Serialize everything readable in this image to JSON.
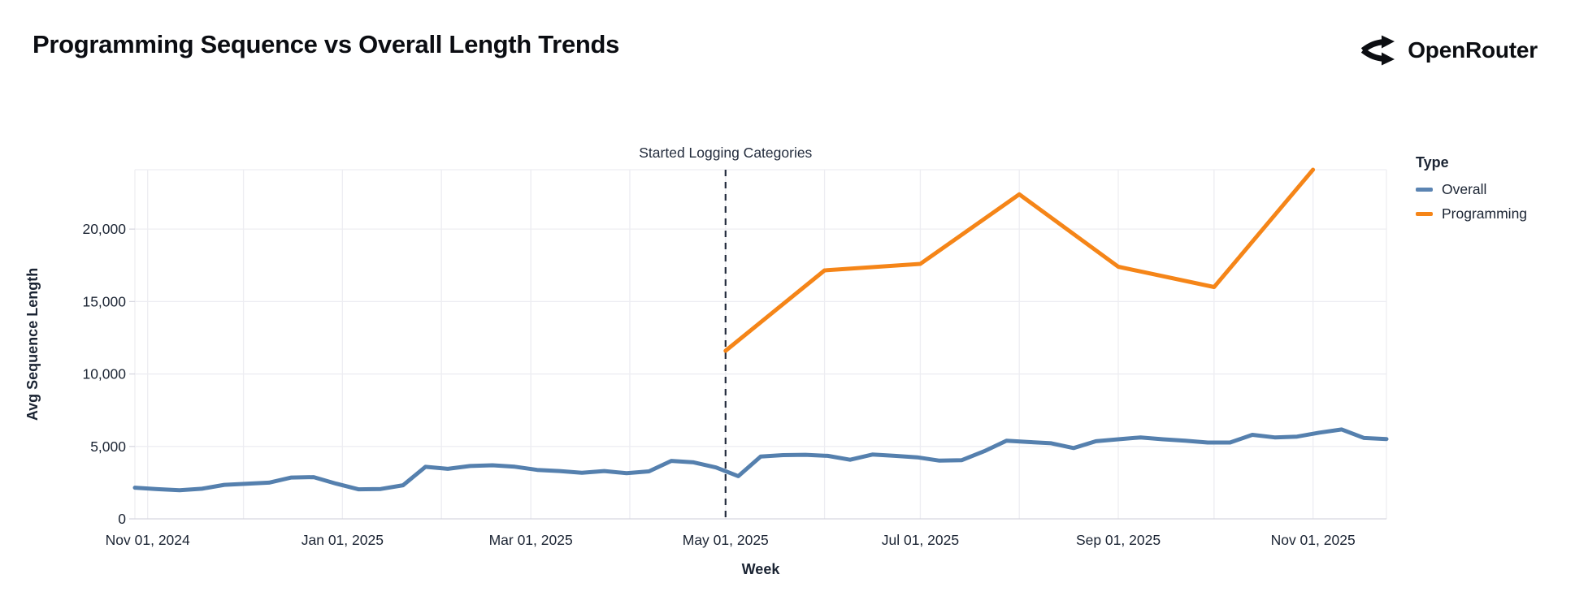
{
  "header": {
    "title": "Programming Sequence vs Overall Length Trends",
    "brand": "OpenRouter"
  },
  "legend": {
    "title": "Type",
    "items": [
      {
        "label": "Overall",
        "color": "#5b84b2"
      },
      {
        "label": "Programming",
        "color": "#f58518"
      }
    ]
  },
  "colors": {
    "overall_line": "#5580ae",
    "programming_line": "#f58518",
    "grid": "#ededf2",
    "plot_border": "#ededf2",
    "bottom_axis": "#d7d7e0",
    "axis_text": "#1b2433",
    "annotation": "#232c3d",
    "background": "#ffffff"
  },
  "annotation": {
    "text": "Started Logging Categories",
    "date": "2025-05-01"
  },
  "chart_data": {
    "type": "line",
    "title": "Programming Sequence vs Overall Length Trends",
    "xlabel": "Week",
    "ylabel": "Avg Sequence Length",
    "x_domain": [
      "2024-10-28",
      "2025-11-24"
    ],
    "ylim": [
      0,
      24100
    ],
    "grid": "monthly vertical gridlines; horizontal gridlines every 5000; light gray on white",
    "legend_position": "right",
    "annotation": {
      "text": "Started Logging Categories",
      "date": "2025-05-01"
    },
    "x_ticks": [
      {
        "date": "2024-11-01",
        "label": "Nov 01, 2024"
      },
      {
        "date": "2025-01-01",
        "label": "Jan 01, 2025"
      },
      {
        "date": "2025-03-01",
        "label": "Mar 01, 2025"
      },
      {
        "date": "2025-05-01",
        "label": "May 01, 2025"
      },
      {
        "date": "2025-07-01",
        "label": "Jul 01, 2025"
      },
      {
        "date": "2025-09-01",
        "label": "Sep 01, 2025"
      },
      {
        "date": "2025-11-01",
        "label": "Nov 01, 2025"
      }
    ],
    "y_ticks": [
      {
        "value": 0,
        "label": "0"
      },
      {
        "value": 5000,
        "label": "5,000"
      },
      {
        "value": 10000,
        "label": "10,000"
      },
      {
        "value": 15000,
        "label": "15,000"
      },
      {
        "value": 20000,
        "label": "20,000"
      }
    ],
    "series": [
      {
        "name": "Overall",
        "color": "#5580ae",
        "cadence": "weekly",
        "start": "2024-10-28",
        "step_days": 7,
        "values": [
          2150,
          2050,
          1980,
          2080,
          2350,
          2420,
          2500,
          2850,
          2880,
          2430,
          2040,
          2060,
          2320,
          3590,
          3450,
          3650,
          3700,
          3600,
          3380,
          3300,
          3180,
          3300,
          3150,
          3280,
          4000,
          3900,
          3550,
          2950,
          4300,
          4400,
          4420,
          4350,
          4080,
          4440,
          4350,
          4250,
          4020,
          4050,
          4670,
          5400,
          5300,
          5220,
          4890,
          5360,
          5490,
          5620,
          5490,
          5400,
          5270,
          5270,
          5800,
          5620,
          5675,
          5950,
          6170,
          5580,
          5510
        ]
      },
      {
        "name": "Programming",
        "color": "#f58518",
        "cadence": "monthly",
        "points": [
          [
            "2025-05-01",
            11600
          ],
          [
            "2025-06-01",
            17150
          ],
          [
            "2025-07-01",
            17600
          ],
          [
            "2025-08-01",
            22400
          ],
          [
            "2025-09-01",
            17400
          ],
          [
            "2025-10-01",
            16000
          ],
          [
            "2025-11-01",
            24100
          ]
        ]
      }
    ]
  }
}
